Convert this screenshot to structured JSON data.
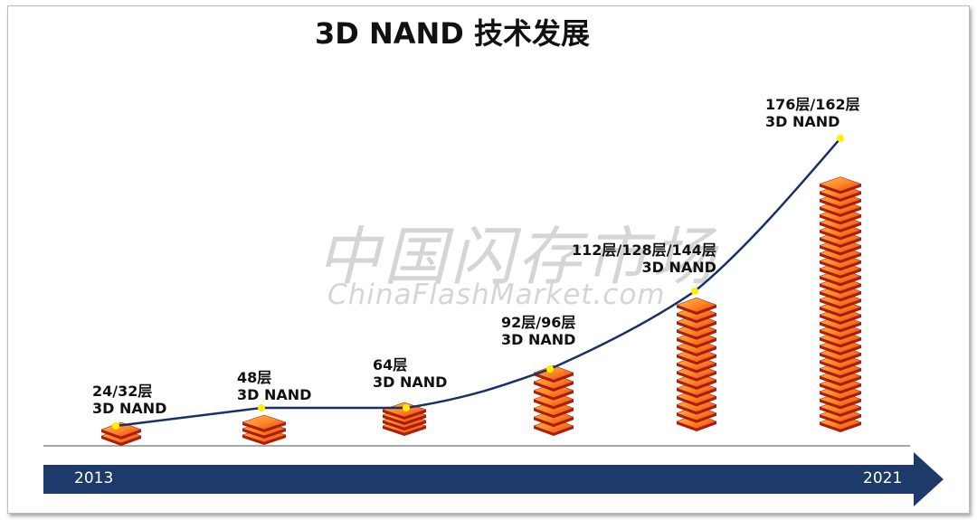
{
  "title": "3D NAND 技术发展",
  "watermark": {
    "cn": "中国闪存市场",
    "en": "ChinaFlashMarket.com"
  },
  "timeline": {
    "start": "2013",
    "end": "2021"
  },
  "milestones": [
    {
      "line1": "24/32层",
      "line2": "3D NAND",
      "stack_layers": 2
    },
    {
      "line1": "48层",
      "line2": "3D NAND",
      "stack_layers": 3
    },
    {
      "line1": "64层",
      "line2": "3D NAND",
      "stack_layers": 4
    },
    {
      "line1": "92层/96层",
      "line2": "3D NAND",
      "stack_layers": 7
    },
    {
      "line1": "112层/128层/144层",
      "line2": "3D NAND",
      "stack_layers": 15
    },
    {
      "line1": "176层/162层",
      "line2": "3D NAND",
      "stack_layers": 32
    }
  ],
  "colors": {
    "arrow": "#1e3a6a",
    "curve": "#1a2f66",
    "marker": "#ffee00",
    "chip_top": "#ff8a2a",
    "chip_side": "#b41a08",
    "baseline": "#8a8a8a"
  }
}
